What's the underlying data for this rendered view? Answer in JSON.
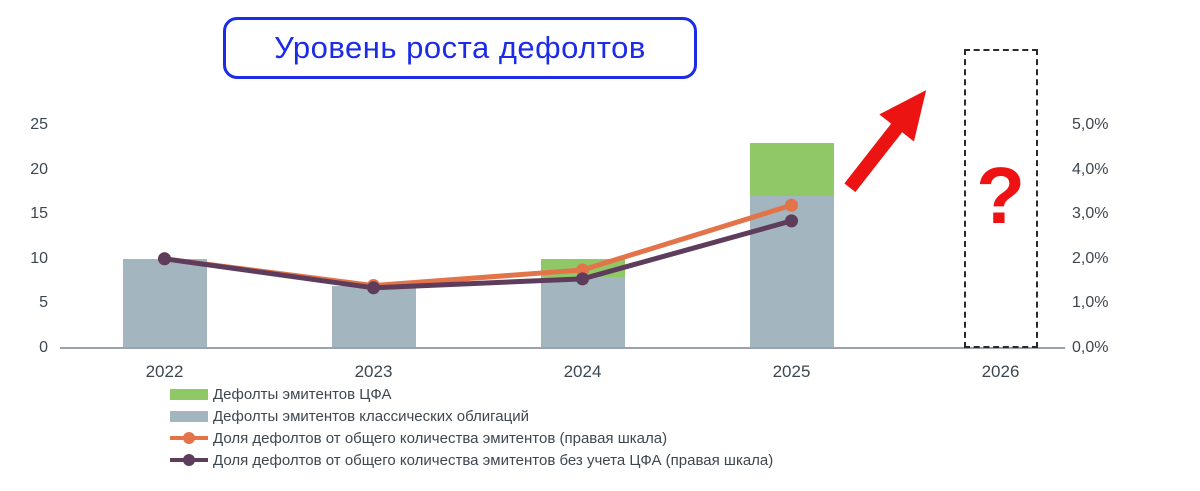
{
  "title": "Уровень роста дефолтов",
  "question_mark": "?",
  "colors": {
    "title_blue": "#1b2be8",
    "bar_green": "#90c767",
    "bar_gray": "#a3b5be",
    "line_orange": "#e3744a",
    "line_purple": "#5e3c5c",
    "arrow_red": "#ec1313",
    "axis_text": "#3d4750",
    "axis_line": "#9aa3ab"
  },
  "chart_data": {
    "type": "bar",
    "subtype": "stacked-bar-with-lines",
    "title": "Уровень роста дефолтов",
    "categories": [
      "2022",
      "2023",
      "2024",
      "2025",
      "2026"
    ],
    "bar_series": [
      {
        "name": "Дефолты эмитентов классических облигаций",
        "color": "#a3b5be",
        "axis": "left",
        "values": [
          10,
          7,
          8,
          17,
          null
        ]
      },
      {
        "name": "Дефолты эмитентов ЦФА",
        "color": "#90c767",
        "axis": "left",
        "values": [
          0,
          0,
          2,
          6,
          null
        ]
      }
    ],
    "line_series": [
      {
        "name": "Доля дефолтов от общего количества эмитентов (правая шкала)",
        "color": "#e3744a",
        "axis": "right",
        "values_pct": [
          2.0,
          1.4,
          1.75,
          3.2
        ]
      },
      {
        "name": "Доля дефолтов от общего количества эмитентов без учета ЦФА (правая шкала)",
        "color": "#5e3c5c",
        "axis": "right",
        "values_pct": [
          2.0,
          1.35,
          1.55,
          2.85
        ]
      }
    ],
    "left_axis": {
      "min": 0,
      "max": 25,
      "ticks": [
        "0",
        "5",
        "10",
        "15",
        "20",
        "25"
      ]
    },
    "right_axis": {
      "min": 0,
      "max": 5,
      "ticks": [
        "0,0%",
        "1,0%",
        "2,0%",
        "3,0%",
        "4,0%",
        "5,0%"
      ]
    },
    "grid": false,
    "legend_position": "bottom-left",
    "forecast": {
      "category": "2026",
      "marker": "?",
      "style": "dashed-box",
      "arrow": "red up-right"
    }
  },
  "legend": {
    "items": [
      {
        "label": "Дефолты эмитентов ЦФА",
        "swatch": "bar",
        "color": "#90c767"
      },
      {
        "label": "Дефолты эмитентов классических облигаций",
        "swatch": "bar",
        "color": "#a3b5be"
      },
      {
        "label": "Доля дефолтов от общего количества эмитентов (правая шкала)",
        "swatch": "line",
        "color": "#e3744a"
      },
      {
        "label": "Доля дефолтов от общего количества эмитентов без учета ЦФА (правая шкала)",
        "swatch": "line",
        "color": "#5e3c5c"
      }
    ]
  }
}
